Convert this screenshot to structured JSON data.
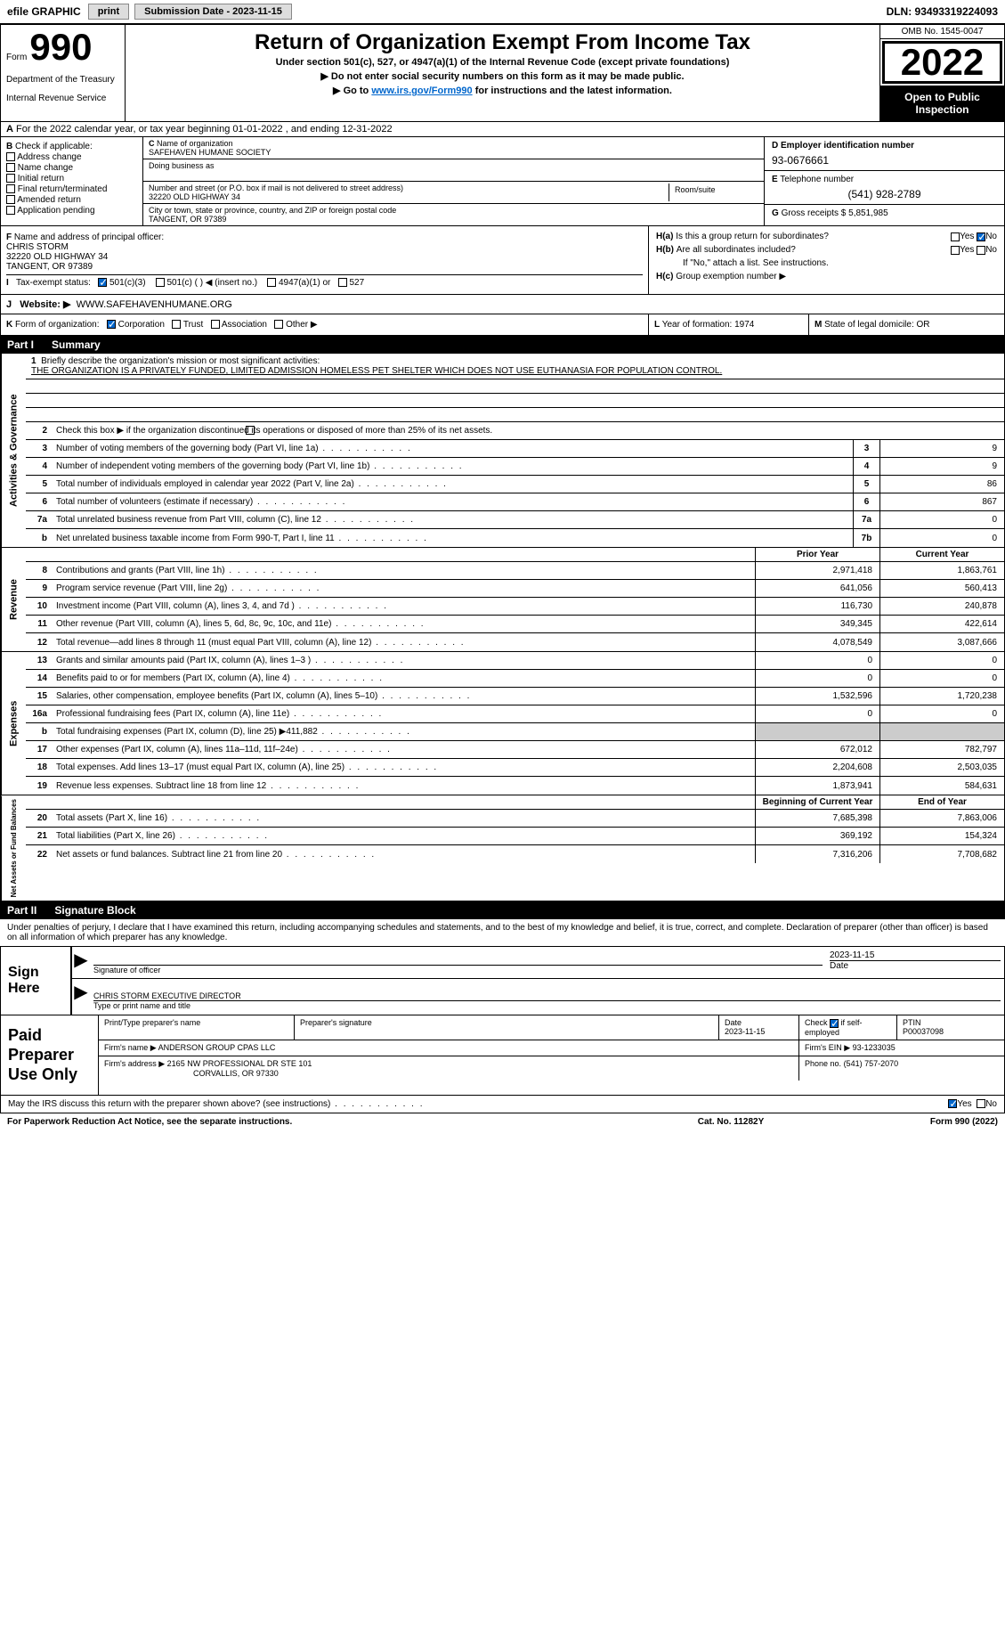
{
  "header": {
    "efile": "efile GRAPHIC",
    "print": "print",
    "submission": "Submission Date - 2023-11-15",
    "dln": "DLN: 93493319224093"
  },
  "top": {
    "form_word": "Form",
    "form_no": "990",
    "title": "Return of Organization Exempt From Income Tax",
    "subtitle": "Under section 501(c), 527, or 4947(a)(1) of the Internal Revenue Code (except private foundations)",
    "instr1": "Do not enter social security numbers on this form as it may be made public.",
    "instr2_pre": "Go to ",
    "instr2_link": "www.irs.gov/Form990",
    "instr2_post": " for instructions and the latest information.",
    "dept": "Department of the Treasury",
    "irs": "Internal Revenue Service",
    "omb": "OMB No. 1545-0047",
    "year": "2022",
    "open": "Open to Public Inspection"
  },
  "section_a": {
    "text": "For the 2022 calendar year, or tax year beginning 01-01-2022    , and ending 12-31-2022"
  },
  "col_b": {
    "header": "Check if applicable:",
    "opts": [
      "Address change",
      "Name change",
      "Initial return",
      "Final return/terminated",
      "Amended return",
      "Application pending"
    ]
  },
  "col_c": {
    "name_label": "Name of organization",
    "name": "SAFEHAVEN HUMANE SOCIETY",
    "dba_label": "Doing business as",
    "dba": "",
    "addr_label": "Number and street (or P.O. box if mail is not delivered to street address)",
    "room_label": "Room/suite",
    "addr": "32220 OLD HIGHWAY 34",
    "city_label": "City or town, state or province, country, and ZIP or foreign postal code",
    "city": "TANGENT, OR  97389"
  },
  "col_d": {
    "ein_label": "Employer identification number",
    "ein": "93-0676661",
    "phone_label": "Telephone number",
    "phone": "(541) 928-2789",
    "gross_label": "Gross receipts $",
    "gross": "5,851,985"
  },
  "officer": {
    "label": "Name and address of principal officer:",
    "name": "CHRIS STORM",
    "addr1": "32220 OLD HIGHWAY 34",
    "addr2": "TANGENT, OR  97389"
  },
  "tax_status": {
    "label": "Tax-exempt status:",
    "o1": "501(c)(3)",
    "o2": "501(c) (  ) ◀ (insert no.)",
    "o3": "4947(a)(1) or",
    "o4": "527"
  },
  "h_section": {
    "ha": "Is this a group return for subordinates?",
    "hb": "Are all subordinates included?",
    "hb_note": "If \"No,\" attach a list. See instructions.",
    "hc": "Group exemption number ▶",
    "yes": "Yes",
    "no": "No"
  },
  "website": {
    "label": "Website: ▶",
    "url": "WWW.SAFEHAVENHUMANE.ORG"
  },
  "k_org": {
    "label": "Form of organization:",
    "opts": [
      "Corporation",
      "Trust",
      "Association",
      "Other ▶"
    ],
    "year_label": "Year of formation:",
    "year": "1974",
    "state_label": "State of legal domicile:",
    "state": "OR"
  },
  "part1": {
    "part": "Part I",
    "title": "Summary"
  },
  "mission": {
    "label": "Briefly describe the organization's mission or most significant activities:",
    "text": "THE ORGANIZATION IS A PRIVATELY FUNDED, LIMITED ADMISSION HOMELESS PET SHELTER WHICH DOES NOT USE EUTHANASIA FOR POPULATION CONTROL."
  },
  "line2": "Check this box ▶    if the organization discontinued its operations or disposed of more than 25% of its net assets.",
  "gov_rows": [
    {
      "n": "3",
      "d": "Number of voting members of the governing body (Part VI, line 1a)",
      "box": "3",
      "v": "9"
    },
    {
      "n": "4",
      "d": "Number of independent voting members of the governing body (Part VI, line 1b)",
      "box": "4",
      "v": "9"
    },
    {
      "n": "5",
      "d": "Total number of individuals employed in calendar year 2022 (Part V, line 2a)",
      "box": "5",
      "v": "86"
    },
    {
      "n": "6",
      "d": "Total number of volunteers (estimate if necessary)",
      "box": "6",
      "v": "867"
    },
    {
      "n": "7a",
      "d": "Total unrelated business revenue from Part VIII, column (C), line 12",
      "box": "7a",
      "v": "0"
    },
    {
      "n": "b",
      "d": "Net unrelated business taxable income from Form 990-T, Part I, line 11",
      "box": "7b",
      "v": "0"
    }
  ],
  "col_headers": {
    "prior": "Prior Year",
    "current": "Current Year"
  },
  "revenue_rows": [
    {
      "n": "8",
      "d": "Contributions and grants (Part VIII, line 1h)",
      "p": "2,971,418",
      "c": "1,863,761"
    },
    {
      "n": "9",
      "d": "Program service revenue (Part VIII, line 2g)",
      "p": "641,056",
      "c": "560,413"
    },
    {
      "n": "10",
      "d": "Investment income (Part VIII, column (A), lines 3, 4, and 7d )",
      "p": "116,730",
      "c": "240,878"
    },
    {
      "n": "11",
      "d": "Other revenue (Part VIII, column (A), lines 5, 6d, 8c, 9c, 10c, and 11e)",
      "p": "349,345",
      "c": "422,614"
    },
    {
      "n": "12",
      "d": "Total revenue—add lines 8 through 11 (must equal Part VIII, column (A), line 12)",
      "p": "4,078,549",
      "c": "3,087,666"
    }
  ],
  "expense_rows": [
    {
      "n": "13",
      "d": "Grants and similar amounts paid (Part IX, column (A), lines 1–3 )",
      "p": "0",
      "c": "0"
    },
    {
      "n": "14",
      "d": "Benefits paid to or for members (Part IX, column (A), line 4)",
      "p": "0",
      "c": "0"
    },
    {
      "n": "15",
      "d": "Salaries, other compensation, employee benefits (Part IX, column (A), lines 5–10)",
      "p": "1,532,596",
      "c": "1,720,238"
    },
    {
      "n": "16a",
      "d": "Professional fundraising fees (Part IX, column (A), line 11e)",
      "p": "0",
      "c": "0"
    },
    {
      "n": "b",
      "d": "Total fundraising expenses (Part IX, column (D), line 25) ▶411,882",
      "p": "",
      "c": "",
      "shaded": true
    },
    {
      "n": "17",
      "d": "Other expenses (Part IX, column (A), lines 11a–11d, 11f–24e)",
      "p": "672,012",
      "c": "782,797"
    },
    {
      "n": "18",
      "d": "Total expenses. Add lines 13–17 (must equal Part IX, column (A), line 25)",
      "p": "2,204,608",
      "c": "2,503,035"
    },
    {
      "n": "19",
      "d": "Revenue less expenses. Subtract line 18 from line 12",
      "p": "1,873,941",
      "c": "584,631"
    }
  ],
  "net_headers": {
    "begin": "Beginning of Current Year",
    "end": "End of Year"
  },
  "net_rows": [
    {
      "n": "20",
      "d": "Total assets (Part X, line 16)",
      "p": "7,685,398",
      "c": "7,863,006"
    },
    {
      "n": "21",
      "d": "Total liabilities (Part X, line 26)",
      "p": "369,192",
      "c": "154,324"
    },
    {
      "n": "22",
      "d": "Net assets or fund balances. Subtract line 21 from line 20",
      "p": "7,316,206",
      "c": "7,708,682"
    }
  ],
  "part2": {
    "part": "Part II",
    "title": "Signature Block"
  },
  "sig": {
    "intro": "Under penalties of perjury, I declare that I have examined this return, including accompanying schedules and statements, and to the best of my knowledge and belief, it is true, correct, and complete. Declaration of preparer (other than officer) is based on all information of which preparer has any knowledge.",
    "sign_here": "Sign Here",
    "sig_of_officer": "Signature of officer",
    "date_label": "Date",
    "date": "2023-11-15",
    "name_title": "CHRIS STORM  EXECUTIVE DIRECTOR",
    "type_label": "Type or print name and title"
  },
  "prep": {
    "label": "Paid Preparer Use Only",
    "name_label": "Print/Type preparer's name",
    "name": "",
    "sig_label": "Preparer's signature",
    "date_label": "Date",
    "date": "2023-11-15",
    "check_label": "Check",
    "check_if": "if self-employed",
    "ptin_label": "PTIN",
    "ptin": "P00037098",
    "firm_name_label": "Firm's name    ▶",
    "firm_name": "ANDERSON GROUP CPAS LLC",
    "firm_ein_label": "Firm's EIN ▶",
    "firm_ein": "93-1233035",
    "firm_addr_label": "Firm's address ▶",
    "firm_addr1": "2165 NW PROFESSIONAL DR STE 101",
    "firm_addr2": "CORVALLIS, OR  97330",
    "phone_label": "Phone no.",
    "phone": "(541) 757-2070"
  },
  "discuss": {
    "q": "May the IRS discuss this return with the preparer shown above? (see instructions)",
    "yes": "Yes",
    "no": "No"
  },
  "footer": {
    "left": "For Paperwork Reduction Act Notice, see the separate instructions.",
    "mid": "Cat. No. 11282Y",
    "right": "Form 990 (2022)"
  },
  "vert_labels": {
    "gov": "Activities & Governance",
    "rev": "Revenue",
    "exp": "Expenses",
    "net": "Net Assets or Fund Balances"
  },
  "letters": {
    "A": "A",
    "B": "B",
    "C": "C",
    "D": "D",
    "E": "E",
    "F": "F",
    "G": "G",
    "H_a": "H(a)",
    "H_b": "H(b)",
    "H_c": "H(c)",
    "I": "I",
    "J": "J",
    "K": "K",
    "L": "L",
    "M": "M"
  }
}
